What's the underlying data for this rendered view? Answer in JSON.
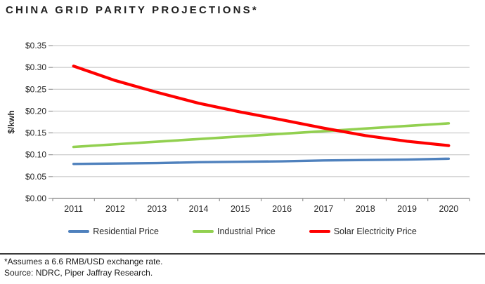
{
  "title": "CHINA GRID PARITY PROJECTIONS*",
  "chart_data": {
    "type": "line",
    "title": "CHINA GRID PARITY PROJECTIONS*",
    "xlabel": "",
    "ylabel": "$/kwh",
    "ylim": [
      0,
      0.35
    ],
    "ytick_step": 0.05,
    "ytick_prefix": "$",
    "grid": true,
    "legend_position": "bottom",
    "categories": [
      "2011",
      "2012",
      "2013",
      "2014",
      "2015",
      "2016",
      "2017",
      "2018",
      "2019",
      "2020"
    ],
    "series": [
      {
        "name": "Residential Price",
        "color": "#4F81BD",
        "values": [
          0.079,
          0.08,
          0.081,
          0.083,
          0.084,
          0.085,
          0.087,
          0.088,
          0.089,
          0.091
        ]
      },
      {
        "name": "Industrial Price",
        "color": "#92D050",
        "values": [
          0.118,
          0.124,
          0.13,
          0.136,
          0.142,
          0.148,
          0.154,
          0.16,
          0.166,
          0.172
        ]
      },
      {
        "name": "Solar Electricity Price",
        "color": "#FF0000",
        "values": [
          0.303,
          0.27,
          0.243,
          0.218,
          0.198,
          0.18,
          0.161,
          0.144,
          0.131,
          0.121
        ]
      }
    ]
  },
  "footnotes": {
    "exchange_note": "*Assumes a 6.6 RMB/USD exchange rate.",
    "source_note": "Source: NDRC, Piper Jaffray Research."
  },
  "colors": {
    "background": "#FFFFFF",
    "title_text": "#1F1F1F",
    "axis_line": "#808080",
    "gridline": "#BFBFBF",
    "tick_text": "#262626",
    "footnote_rule": "#3B3B3B",
    "residential": "#4F81BD",
    "industrial": "#92D050",
    "solar": "#FF0000"
  }
}
